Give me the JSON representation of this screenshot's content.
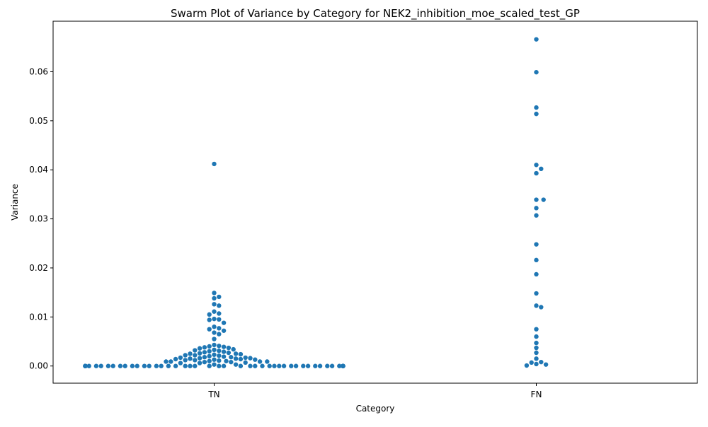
{
  "chart_data": {
    "type": "scatter",
    "subtype": "swarm",
    "title": "Swarm Plot of Variance by Category for NEK2_inhibition_moe_scaled_test_GP",
    "xlabel": "Category",
    "ylabel": "Variance",
    "categories": [
      "TN",
      "FN"
    ],
    "ylim": [
      -0.0035,
      0.0703
    ],
    "yticks": [
      0.0,
      0.01,
      0.02,
      0.03,
      0.04,
      0.05,
      0.06
    ],
    "ytick_labels": [
      "0.00",
      "0.01",
      "0.02",
      "0.03",
      "0.04",
      "0.05",
      "0.06"
    ],
    "grid": false,
    "legend": "none",
    "marker_color": "#1f77b4",
    "series": [
      {
        "category": "TN",
        "values": [
          0.0412,
          0.0149,
          0.0141,
          0.0138,
          0.0126,
          0.0123,
          0.0111,
          0.0107,
          0.0105,
          0.0096,
          0.0095,
          0.0094,
          0.0088,
          0.008,
          0.0077,
          0.0075,
          0.0072,
          0.0068,
          0.0065,
          0.0055,
          0.0043,
          0.0041,
          0.004,
          0.0039,
          0.0038,
          0.0037,
          0.0036,
          0.0034,
          0.0033,
          0.0032,
          0.0031,
          0.003,
          0.0029,
          0.0028,
          0.0027,
          0.0026,
          0.0025,
          0.0025,
          0.0024,
          0.0023,
          0.0022,
          0.0022,
          0.0021,
          0.002,
          0.0019,
          0.0018,
          0.0018,
          0.0017,
          0.0017,
          0.0016,
          0.0016,
          0.0015,
          0.0015,
          0.0014,
          0.0014,
          0.0013,
          0.0013,
          0.0012,
          0.0012,
          0.0011,
          0.001,
          0.001,
          0.0009,
          0.0009,
          0.0008,
          0.0008,
          0.0007,
          0.0009,
          0.0006,
          0.0003,
          0.0009,
          0.0006,
          0.0003,
          0.0,
          0.0,
          0.0,
          0.0,
          0.0,
          0.0,
          0.0,
          0.0,
          0.0,
          0.0,
          0.0,
          0.0,
          0.0,
          0.0,
          0.0,
          0.0,
          0.0,
          0.0,
          0.0,
          0.0,
          0.0,
          0.0,
          0.0,
          0.0,
          0.0,
          0.0,
          0.0,
          0.0,
          0.0,
          0.0,
          0.0,
          0.0,
          0.0,
          0.0,
          0.0,
          0.0,
          0.0,
          0.0,
          0.0,
          0.0,
          0.0,
          0.0,
          0.0,
          0.0,
          0.0,
          0.0,
          0.0,
          0.0,
          0.0,
          0.0,
          0.0,
          0.0,
          0.0,
          0.0,
          0.0,
          0.0,
          0.0,
          0.0,
          0.0,
          0.0
        ]
      },
      {
        "category": "FN",
        "values": [
          0.0666,
          0.0599,
          0.0527,
          0.0514,
          0.041,
          0.0402,
          0.0393,
          0.0339,
          0.0339,
          0.0322,
          0.0307,
          0.0248,
          0.0216,
          0.0187,
          0.0148,
          0.0123,
          0.012,
          0.0075,
          0.006,
          0.0047,
          0.0037,
          0.0027,
          0.0015,
          0.0008,
          0.0007,
          0.0004,
          0.0003,
          0.0001
        ]
      }
    ]
  }
}
